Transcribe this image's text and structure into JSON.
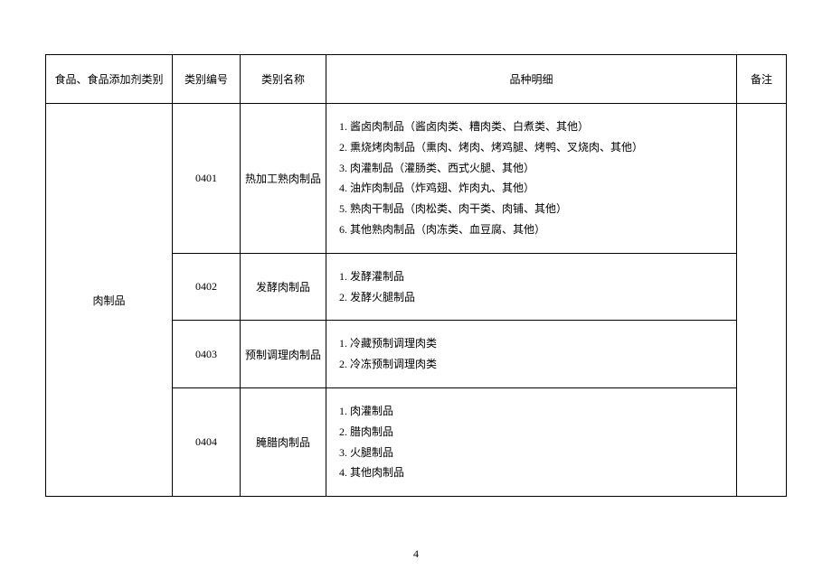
{
  "header": {
    "category": "食品、食品添加剂类别",
    "code": "类别编号",
    "name": "类别名称",
    "detail": "品种明细",
    "note": "备注"
  },
  "category_group": "肉制品",
  "rows": [
    {
      "code": "0401",
      "name": "热加工熟肉制品",
      "details": [
        "1. 酱卤肉制品（酱卤肉类、糟肉类、白煮类、其他）",
        "2. 熏烧烤肉制品（熏肉、烤肉、烤鸡腿、烤鸭、叉烧肉、其他）",
        "3. 肉灌制品（灌肠类、西式火腿、其他）",
        "4. 油炸肉制品（炸鸡翅、炸肉丸、其他）",
        "5. 熟肉干制品（肉松类、肉干类、肉铺、其他）",
        "6. 其他熟肉制品（肉冻类、血豆腐、其他）"
      ]
    },
    {
      "code": "0402",
      "name": "发酵肉制品",
      "details": [
        "1. 发酵灌制品",
        "2. 发酵火腿制品"
      ]
    },
    {
      "code": "0403",
      "name": "预制调理肉制品",
      "details": [
        "1. 冷藏预制调理肉类",
        "2. 冷冻预制调理肉类"
      ]
    },
    {
      "code": "0404",
      "name": "腌腊肉制品",
      "details": [
        "1. 肉灌制品",
        "2. 腊肉制品",
        "3. 火腿制品",
        "4. 其他肉制品"
      ]
    }
  ],
  "note_value": "",
  "page_number": "4"
}
